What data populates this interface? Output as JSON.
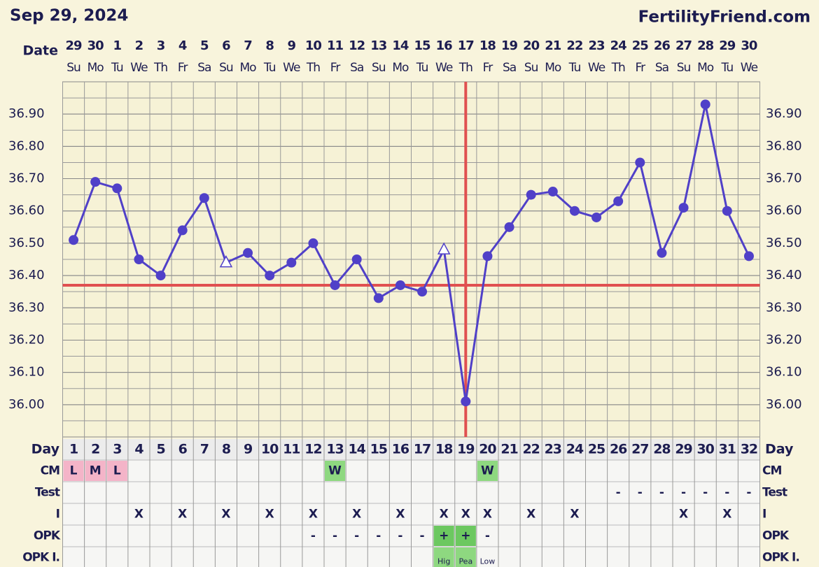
{
  "chart_data": {
    "type": "line",
    "title": "Sep 29, 2024",
    "source": "FertilityFriend.com",
    "x_label": "Date",
    "date_numbers": [
      "29",
      "30",
      "1",
      "2",
      "3",
      "4",
      "5",
      "6",
      "7",
      "8",
      "9",
      "10",
      "11",
      "12",
      "13",
      "14",
      "15",
      "16",
      "17",
      "18",
      "19",
      "20",
      "21",
      "22",
      "23",
      "24",
      "25",
      "26",
      "27",
      "28",
      "29",
      "30"
    ],
    "weekdays": [
      "Su",
      "Mo",
      "Tu",
      "We",
      "Th",
      "Fr",
      "Sa",
      "Su",
      "Mo",
      "Tu",
      "We",
      "Th",
      "Fr",
      "Sa",
      "Su",
      "Mo",
      "Tu",
      "We",
      "Th",
      "Fr",
      "Sa",
      "Su",
      "Mo",
      "Tu",
      "We",
      "Th",
      "Fr",
      "Sa",
      "Su",
      "Mo",
      "Tu",
      "We"
    ],
    "x": [
      1,
      2,
      3,
      4,
      5,
      6,
      7,
      8,
      9,
      10,
      11,
      12,
      13,
      14,
      15,
      16,
      17,
      18,
      19,
      20,
      21,
      22,
      23,
      24,
      25,
      26,
      27,
      28,
      29,
      30,
      31,
      32
    ],
    "xlim": [
      0.5,
      32.5
    ],
    "ylim": [
      35.9,
      37.0
    ],
    "yticks": [
      {
        "value": 36.0,
        "label": "36.00"
      },
      {
        "value": 36.1,
        "label": "36.10"
      },
      {
        "value": 36.2,
        "label": "36.20"
      },
      {
        "value": 36.3,
        "label": "36.30"
      },
      {
        "value": 36.4,
        "label": "36.40"
      },
      {
        "value": 36.5,
        "label": "36.50"
      },
      {
        "value": 36.6,
        "label": "36.60"
      },
      {
        "value": 36.7,
        "label": "36.70"
      },
      {
        "value": 36.8,
        "label": "36.80"
      },
      {
        "value": 36.9,
        "label": "36.90"
      }
    ],
    "minor_grid_step": 0.05,
    "grid": true,
    "series": [
      {
        "color": "#5040c8",
        "values": [
          36.51,
          36.69,
          36.67,
          36.45,
          36.4,
          36.54,
          36.64,
          36.44,
          36.47,
          36.4,
          36.44,
          36.5,
          36.37,
          36.45,
          36.33,
          36.37,
          36.35,
          36.48,
          36.01,
          36.46,
          36.55,
          36.65,
          36.66,
          36.6,
          36.58,
          36.63,
          36.75,
          36.47,
          36.61,
          36.93,
          36.6,
          36.46
        ],
        "markers": [
          "circle",
          "circle",
          "circle",
          "circle",
          "circle",
          "circle",
          "circle",
          "triangle",
          "circle",
          "circle",
          "circle",
          "circle",
          "circle",
          "circle",
          "circle",
          "circle",
          "circle",
          "triangle",
          "circle",
          "circle",
          "circle",
          "circle",
          "circle",
          "circle",
          "circle",
          "circle",
          "circle",
          "circle",
          "circle",
          "circle",
          "circle",
          "circle"
        ]
      }
    ],
    "coverline": {
      "value": 36.37,
      "color": "#e05050"
    },
    "ovulation_day": 19,
    "table": {
      "day_label": "Day",
      "rows": [
        {
          "label": "CM",
          "entries": [
            {
              "day": 1,
              "text": "L",
              "color": "#f4b4c8"
            },
            {
              "day": 2,
              "text": "M",
              "color": "#f4b4c8"
            },
            {
              "day": 3,
              "text": "L",
              "color": "#f4b4c8"
            },
            {
              "day": 13,
              "text": "W",
              "color": "#8ed880"
            },
            {
              "day": 20,
              "text": "W",
              "color": "#8ed880"
            }
          ]
        },
        {
          "label": "Test",
          "entries": [
            {
              "day": 26,
              "text": "-"
            },
            {
              "day": 27,
              "text": "-"
            },
            {
              "day": 28,
              "text": "-"
            },
            {
              "day": 29,
              "text": "-"
            },
            {
              "day": 30,
              "text": "-"
            },
            {
              "day": 31,
              "text": "-"
            },
            {
              "day": 32,
              "text": "-"
            }
          ]
        },
        {
          "label": "I",
          "entries": [
            {
              "day": 4,
              "text": "X"
            },
            {
              "day": 6,
              "text": "X"
            },
            {
              "day": 8,
              "text": "X"
            },
            {
              "day": 10,
              "text": "X"
            },
            {
              "day": 12,
              "text": "X"
            },
            {
              "day": 14,
              "text": "X"
            },
            {
              "day": 16,
              "text": "X"
            },
            {
              "day": 18,
              "text": "X"
            },
            {
              "day": 19,
              "text": "X"
            },
            {
              "day": 20,
              "text": "X"
            },
            {
              "day": 22,
              "text": "X"
            },
            {
              "day": 24,
              "text": "X"
            },
            {
              "day": 29,
              "text": "X"
            },
            {
              "day": 31,
              "text": "X"
            }
          ]
        },
        {
          "label": "OPK",
          "entries": [
            {
              "day": 12,
              "text": "-"
            },
            {
              "day": 13,
              "text": "-"
            },
            {
              "day": 14,
              "text": "-"
            },
            {
              "day": 15,
              "text": "-"
            },
            {
              "day": 16,
              "text": "-"
            },
            {
              "day": 17,
              "text": "-"
            },
            {
              "day": 18,
              "text": "+",
              "color": "#6cc860"
            },
            {
              "day": 19,
              "text": "+",
              "color": "#6cc860"
            },
            {
              "day": 20,
              "text": "-"
            }
          ]
        },
        {
          "label": "OPK I.",
          "small": true,
          "entries": [
            {
              "day": 18,
              "text": "Hig",
              "color": "#8ed880"
            },
            {
              "day": 19,
              "text": "Pea",
              "color": "#8ed880"
            },
            {
              "day": 20,
              "text": "Low"
            }
          ]
        }
      ]
    }
  }
}
